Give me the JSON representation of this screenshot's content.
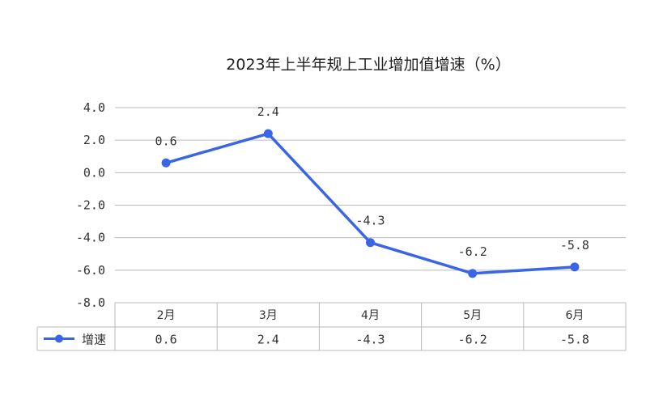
{
  "chart_data": {
    "type": "line",
    "title": "2023年上半年规上工业增加值增速（%）",
    "categories": [
      "2月",
      "3月",
      "4月",
      "5月",
      "6月"
    ],
    "series": [
      {
        "name": "增速",
        "values": [
          0.6,
          2.4,
          -4.3,
          -6.2,
          -5.8
        ],
        "labels": [
          "0.6",
          "2.4",
          "-4.3",
          "-6.2",
          "-5.8"
        ]
      }
    ],
    "ylim": [
      -8.0,
      4.0
    ],
    "yticks": [
      "4.0",
      "2.0",
      "0.0",
      "-2.0",
      "-4.0",
      "-6.0",
      "-8.0"
    ],
    "ytick_values": [
      4,
      2,
      0,
      -2,
      -4,
      -6,
      -8
    ],
    "grid": true,
    "data_table": true,
    "line_color": "#3a66e6",
    "grid_color": "#bbbbbb"
  }
}
